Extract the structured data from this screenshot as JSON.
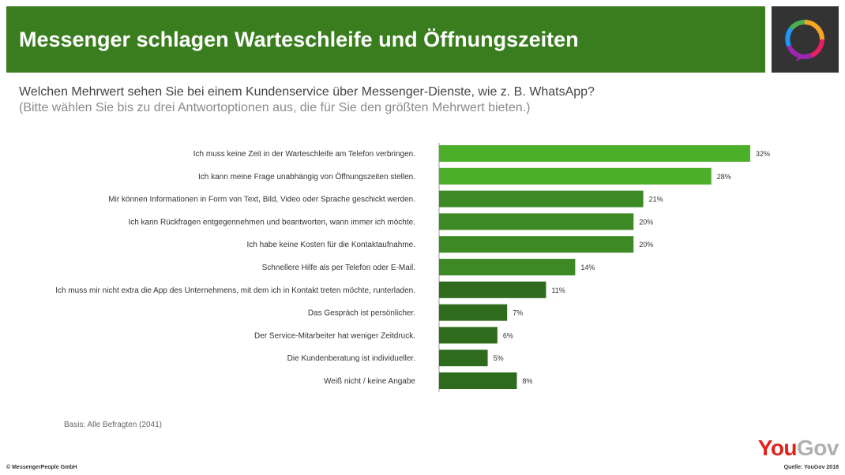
{
  "header": {
    "title": "Messenger schlagen Warteschleife und Öffnungszeiten"
  },
  "question": "Welchen Mehrwert sehen Sie bei einem Kundenservice über Messenger-Dienste, wie z. B. WhatsApp?",
  "subquestion": "(Bitte wählen Sie bis zu drei Antwortoptionen aus, die für Sie den größten Mehrwert bieten.)",
  "base_note": "Basis: Alle Befragten (2041)",
  "footer": {
    "copyright": "© MessengerPeople GmbH",
    "source": "Quelle: YouGov 2018"
  },
  "brand": {
    "you": "You",
    "gov": "Gov"
  },
  "colors": {
    "header_bg": "#3a7d1e",
    "bar_light": "#4caf2a",
    "bar_mid": "#3d8a24",
    "bar_dark": "#2f6b1c"
  },
  "chart_data": {
    "type": "bar",
    "orientation": "horizontal",
    "categories": [
      "Ich muss keine Zeit in der Warteschleife am Telefon verbringen.",
      "Ich kann meine Frage unabhängig von Öffnungszeiten stellen.",
      "Mir können Informationen in Form von Text, Bild, Video oder Sprache geschickt werden.",
      "Ich kann Rückfragen entgegennehmen und beantworten, wann immer ich möchte.",
      "Ich habe keine Kosten für die Kontaktaufnahme.",
      "Schnellere Hilfe als per Telefon oder E-Mail.",
      "Ich muss mir nicht extra die App des Unternehmens, mit dem ich in Kontakt treten möchte, runterladen.",
      "Das Gespräch ist persönlicher.",
      "Der Service-Mitarbeiter hat weniger Zeitdruck.",
      "Die Kundenberatung ist individueller.",
      "Weiß nicht / keine Angabe"
    ],
    "values": [
      32,
      28,
      21,
      20,
      20,
      14,
      11,
      7,
      6,
      5,
      8
    ],
    "value_labels": [
      "32%",
      "28%",
      "21%",
      "20%",
      "20%",
      "14%",
      "11%",
      "7%",
      "6%",
      "5%",
      "8%"
    ],
    "bar_colors": [
      "#4caf2a",
      "#4caf2a",
      "#3d8a24",
      "#3d8a24",
      "#3d8a24",
      "#3d8a24",
      "#2f6b1c",
      "#2f6b1c",
      "#2f6b1c",
      "#2f6b1c",
      "#2f6b1c"
    ],
    "xlim": [
      0,
      32
    ],
    "grid": false,
    "legend": "none"
  }
}
